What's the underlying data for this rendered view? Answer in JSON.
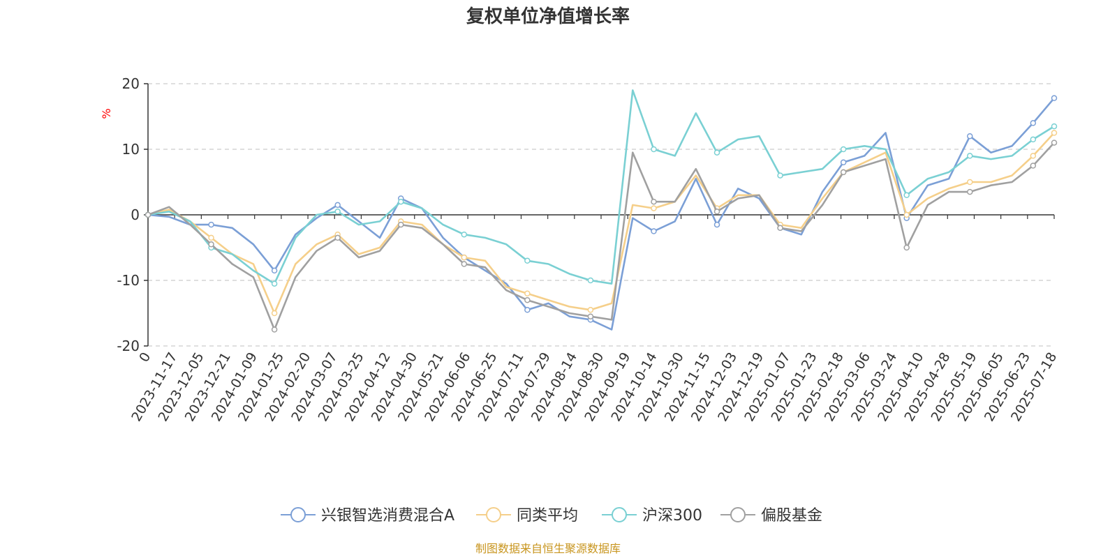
{
  "chart_data": {
    "type": "line",
    "title": "复权单位净值增长率",
    "unit_label": "%",
    "source": "制图数据来自恒生聚源数据库",
    "ylim": [
      -20,
      20
    ],
    "yticks": [
      20,
      10,
      0,
      -10,
      -20
    ],
    "grid": "horizontal-dashed",
    "legend_position": "bottom-center",
    "x_tick_labels": [
      "0",
      "2023-11-17",
      "2023-12-05",
      "2023-12-21",
      "2024-01-09",
      "2024-01-25",
      "2024-02-20",
      "2024-03-07",
      "2024-03-25",
      "2024-04-12",
      "2024-04-30",
      "2024-05-21",
      "2024-06-06",
      "2024-06-25",
      "2024-07-11",
      "2024-07-29",
      "2024-08-14",
      "2024-08-30",
      "2024-09-19",
      "2024-10-14",
      "2024-10-30",
      "2024-11-15",
      "2024-12-03",
      "2024-12-19",
      "2025-01-07",
      "2025-01-23",
      "2025-02-18",
      "2025-03-06",
      "2025-03-24",
      "2025-04-10",
      "2025-04-28",
      "2025-05-19",
      "2025-06-05",
      "2025-06-23",
      "2025-07-18"
    ],
    "series": [
      {
        "name": "兴银智选消费混合A",
        "color": "#7b9fd6",
        "values": [
          0,
          -0.3,
          -1.5,
          -1.5,
          -2.0,
          -4.5,
          -8.5,
          -3.0,
          -0.5,
          1.5,
          -1.0,
          -3.5,
          2.5,
          1.0,
          -3.5,
          -6.5,
          -8.5,
          -10.5,
          -14.5,
          -13.5,
          -15.5,
          -16.0,
          -17.5,
          -0.5,
          -2.5,
          -1.0,
          5.5,
          -1.5,
          4.0,
          2.5,
          -2.0,
          -3.0,
          3.5,
          8.0,
          9.0,
          12.5,
          -0.5,
          4.5,
          5.5,
          12.0,
          9.5,
          10.5,
          14.0,
          17.8
        ]
      },
      {
        "name": "同类平均",
        "color": "#f5cf8a",
        "values": [
          0,
          0.8,
          -1.0,
          -3.5,
          -6.0,
          -7.5,
          -15.0,
          -7.5,
          -4.5,
          -3.0,
          -6.0,
          -5.0,
          -1.0,
          -1.5,
          -4.5,
          -6.5,
          -7.0,
          -11.0,
          -12.0,
          -13.0,
          -14.0,
          -14.5,
          -13.5,
          1.5,
          1.0,
          2.0,
          6.0,
          1.0,
          3.0,
          3.0,
          -1.5,
          -2.0,
          2.5,
          6.5,
          8.0,
          9.5,
          0.0,
          2.5,
          4.0,
          5.0,
          5.0,
          6.0,
          9.0,
          12.5
        ]
      },
      {
        "name": "沪深300",
        "color": "#7ad0d3",
        "values": [
          0,
          0.5,
          -1.0,
          -5.0,
          -6.0,
          -8.5,
          -10.5,
          -3.5,
          0.0,
          0.5,
          -1.5,
          -1.0,
          2.0,
          1.0,
          -1.5,
          -3.0,
          -3.5,
          -4.5,
          -7.0,
          -7.5,
          -9.0,
          -10.0,
          -10.5,
          19.0,
          10.0,
          9.0,
          15.5,
          9.5,
          11.5,
          12.0,
          6.0,
          6.5,
          7.0,
          10.0,
          10.5,
          10.0,
          3.0,
          5.5,
          6.5,
          9.0,
          8.5,
          9.0,
          11.5,
          13.5
        ]
      },
      {
        "name": "偏股基金",
        "color": "#a0a0a0",
        "values": [
          0,
          1.2,
          -1.5,
          -4.5,
          -7.5,
          -9.5,
          -17.5,
          -9.5,
          -5.5,
          -3.5,
          -6.5,
          -5.5,
          -1.5,
          -2.0,
          -4.5,
          -7.5,
          -8.0,
          -11.5,
          -13.0,
          -14.0,
          -15.0,
          -15.5,
          -16.0,
          9.5,
          2.0,
          2.0,
          7.0,
          0.5,
          2.5,
          3.0,
          -2.0,
          -2.5,
          1.5,
          6.5,
          7.5,
          8.5,
          -5.0,
          1.5,
          3.5,
          3.5,
          4.5,
          5.0,
          7.5,
          11.0
        ]
      }
    ]
  }
}
